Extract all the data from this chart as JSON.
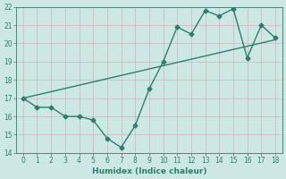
{
  "x": [
    0,
    1,
    2,
    3,
    4,
    5,
    6,
    7,
    8,
    9,
    10,
    11,
    12,
    13,
    14,
    15,
    16,
    17,
    18
  ],
  "y": [
    17.0,
    16.5,
    16.5,
    16.0,
    16.0,
    15.8,
    14.8,
    14.3,
    15.5,
    17.5,
    19.0,
    20.9,
    20.5,
    21.8,
    21.5,
    21.9,
    19.2,
    21.0,
    20.3
  ],
  "trend_x": [
    0,
    18
  ],
  "trend_y": [
    17.0,
    20.2
  ],
  "line_color": "#2e7d6e",
  "bg_color": "#cce8e5",
  "grid_color": "#b0d8d4",
  "xlabel": "Humidex (Indice chaleur)",
  "ylim": [
    14,
    22
  ],
  "xlim": [
    -0.5,
    18.5
  ],
  "yticks": [
    14,
    15,
    16,
    17,
    18,
    19,
    20,
    21,
    22
  ],
  "xticks": [
    0,
    1,
    2,
    3,
    4,
    5,
    6,
    7,
    8,
    9,
    10,
    11,
    12,
    13,
    14,
    15,
    16,
    17,
    18
  ],
  "marker": "D",
  "markersize": 2.5,
  "linewidth": 1.0,
  "tick_fontsize": 5.5,
  "xlabel_fontsize": 6.5
}
